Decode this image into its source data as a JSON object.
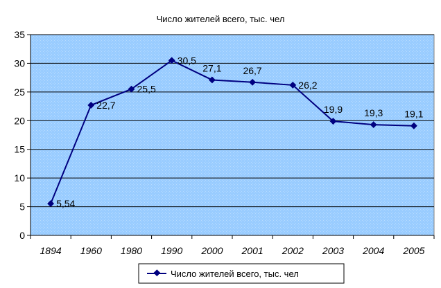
{
  "chart_data": {
    "type": "line",
    "title": "Число жителей всего, тыс. чел",
    "categories": [
      "1894",
      "1960",
      "1980",
      "1990",
      "2000",
      "2001",
      "2002",
      "2003",
      "2004",
      "2005"
    ],
    "series": [
      {
        "name": "Число жителей всего, тыс. чел",
        "values": [
          5.54,
          22.7,
          25.5,
          30.5,
          27.1,
          26.7,
          26.2,
          19.9,
          19.3,
          19.1
        ],
        "labels": [
          "5,54",
          "22,7",
          "25,5",
          "30,5",
          "27,1",
          "26,7",
          "26,2",
          "19,9",
          "19,3",
          "19,1"
        ]
      }
    ],
    "yticks": [
      "0",
      "5",
      "10",
      "15",
      "20",
      "25",
      "30",
      "35"
    ],
    "ylim": [
      0,
      35
    ],
    "grid": true,
    "legend": "bottom",
    "colors": {
      "plot_background": "#99ccff",
      "series": "#000080",
      "gridline": "#000000"
    }
  }
}
